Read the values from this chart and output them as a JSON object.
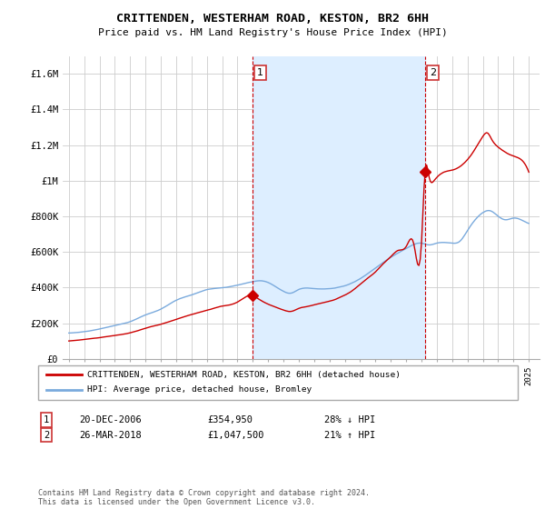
{
  "title": "CRITTENDEN, WESTERHAM ROAD, KESTON, BR2 6HH",
  "subtitle": "Price paid vs. HM Land Registry's House Price Index (HPI)",
  "ylim": [
    0,
    1700000
  ],
  "yticks": [
    0,
    200000,
    400000,
    600000,
    800000,
    1000000,
    1200000,
    1400000,
    1600000
  ],
  "ytick_labels": [
    "£0",
    "£200K",
    "£400K",
    "£600K",
    "£800K",
    "£1M",
    "£1.2M",
    "£1.4M",
    "£1.6M"
  ],
  "legend_label_red": "CRITTENDEN, WESTERHAM ROAD, KESTON, BR2 6HH (detached house)",
  "legend_label_blue": "HPI: Average price, detached house, Bromley",
  "sale1_date": "20-DEC-2006",
  "sale1_price": "£354,950",
  "sale1_hpi": "28% ↓ HPI",
  "sale2_date": "26-MAR-2018",
  "sale2_price": "£1,047,500",
  "sale2_hpi": "21% ↑ HPI",
  "footer": "Contains HM Land Registry data © Crown copyright and database right 2024.\nThis data is licensed under the Open Government Licence v3.0.",
  "red_color": "#cc0000",
  "blue_color": "#7aaadd",
  "shade_color": "#ddeeff",
  "marker1_x": 2006.97,
  "marker1_y": 354950,
  "marker2_x": 2018.23,
  "marker2_y": 1047500,
  "vline1_x": 2006.97,
  "vline2_x": 2018.23,
  "xlim_left": 1994.6,
  "xlim_right": 2025.7,
  "background_color": "#ffffff",
  "grid_color": "#cccccc"
}
